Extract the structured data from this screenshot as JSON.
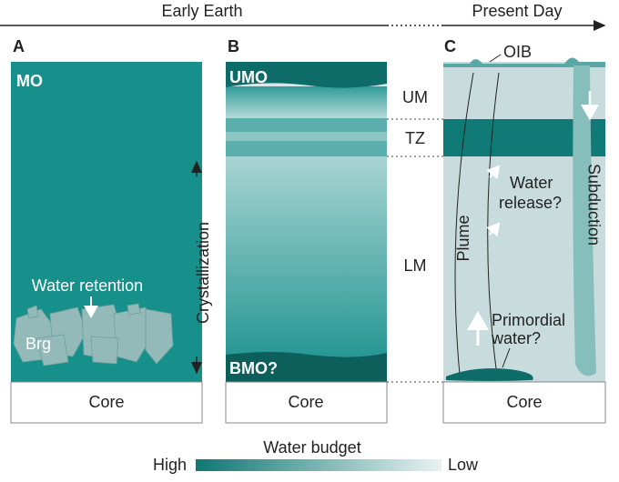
{
  "timeline": {
    "left": "Early Earth",
    "right": "Present Day"
  },
  "panels": [
    {
      "label": "A",
      "top": "MO",
      "annotation": "Water retention",
      "mineral": "Brg",
      "core": "Core"
    },
    {
      "label": "B",
      "top": "UMO",
      "bottom": "BMO?",
      "core": "Core"
    },
    {
      "label": "C",
      "hotspot": "OIB",
      "release": [
        "Water",
        "release?"
      ],
      "plume": "Plume",
      "subduction": "Subduction",
      "primordial": [
        "Primordial",
        "water?"
      ],
      "core": "Core"
    }
  ],
  "crystallization": "Crystallization",
  "layers": [
    "UM",
    "TZ",
    "LM"
  ],
  "legend": {
    "title": "Water budget",
    "high": "High",
    "low": "Low"
  }
}
